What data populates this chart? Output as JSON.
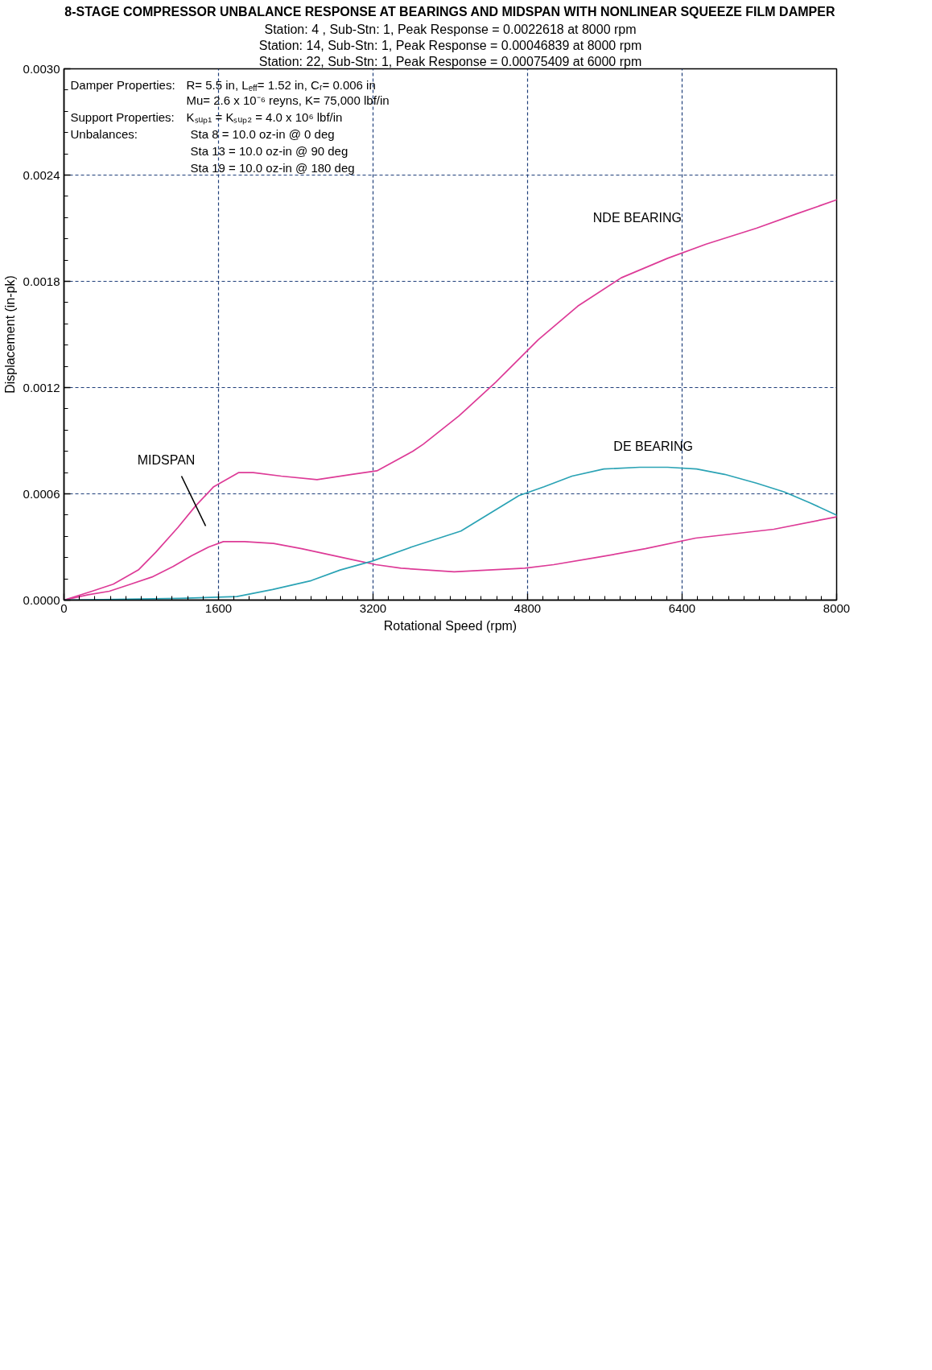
{
  "chart_data": {
    "type": "line",
    "title": "8-STAGE COMPRESSOR UNBALANCE RESPONSE AT BEARINGS AND MIDSPAN WITH NONLINEAR SQUEEZE FILM DAMPER",
    "xlabel": "Rotational Speed (rpm)",
    "ylabel": "Displacement (in-pk)",
    "annotations": [
      "Station: 4 , Sub-Stn: 1, Peak Response = 0.0022618 at 8000 rpm",
      "Station: 14, Sub-Stn: 1, Peak Response = 0.00046839 at 8000 rpm",
      "Station: 22, Sub-Stn: 1, Peak Response = 0.00075409 at 6000 rpm",
      "Damper Properties:",
      "R= 5.5 in, L$_{eff}$= 1.52 in, Cᵣ= 0.006 in",
      "Mu= 2.6 x 10⁻⁶ reyns, K= 75,000 lbf/in",
      "Support Properties:",
      "Kₛᵤₚ₁ = Kₛᵤₚ₂ = 4.0 x 10⁶ lbf/in",
      "Unbalances:",
      "Sta 8 = 10.0 oz-in @ 0 deg",
      "Sta 13 = 10.0 oz-in @ 90 deg",
      "Sta 19 = 10.0 oz-in @ 180 deg"
    ],
    "xlim": [
      0,
      8000
    ],
    "xticks": [
      0,
      1600,
      3200,
      4800,
      6400,
      8000
    ],
    "ylim": [
      0,
      0.003
    ],
    "yticks": [
      {
        "value": 0,
        "label": "0.0000"
      },
      0.0006,
      0.0012,
      0.0018,
      0.0024,
      {
        "value": 0.003,
        "label": "0.0030"
      }
    ],
    "grid": true,
    "line_style": "solid",
    "series": [
      {
        "name": "NDE BEARING",
        "color": "#dd3b97",
        "x": [
          0,
          290,
          510,
          770,
          950,
          1180,
          1360,
          1550,
          1810,
          1960,
          2250,
          2620,
          2980,
          3240,
          3610,
          3720,
          4090,
          4470,
          4910,
          5320,
          5770,
          6250,
          6650,
          7170,
          7580,
          8000
        ],
        "values": [
          0,
          5e-05,
          9e-05,
          0.00017,
          0.00027,
          0.00041,
          0.00053,
          0.00064,
          0.00072,
          0.00072,
          0.0007,
          0.00068,
          0.00071,
          0.00073,
          0.00084,
          0.00088,
          0.00104,
          0.00123,
          0.00147,
          0.00166,
          0.00182,
          0.00193,
          0.00201,
          0.0021,
          0.00218,
          0.00226
        ]
      },
      {
        "name": "MIDSPAN",
        "color": "#dd3b97",
        "x": [
          0,
          250,
          470,
          690,
          910,
          1130,
          1320,
          1500,
          1650,
          1870,
          2170,
          2460,
          2720,
          2970,
          3230,
          3490,
          4040,
          4400,
          4770,
          5070,
          5510,
          6020,
          6540,
          7350,
          8000
        ],
        "values": [
          0,
          3e-05,
          5e-05,
          9e-05,
          0.00013,
          0.00019,
          0.00025,
          0.0003,
          0.00033,
          0.00033,
          0.00032,
          0.00029,
          0.00026,
          0.00023,
          0.0002,
          0.00018,
          0.00016,
          0.00017,
          0.00018,
          0.0002,
          0.00024,
          0.00029,
          0.00035,
          0.0004,
          0.00047
        ]
      },
      {
        "name": "DE BEARING",
        "color": "#2ba3b5",
        "x": [
          0,
          1200,
          1790,
          2160,
          2560,
          2860,
          3190,
          3600,
          4110,
          4410,
          4710,
          4970,
          5260,
          5590,
          5960,
          6250,
          6550,
          6840,
          7170,
          7460,
          7720,
          8000
        ],
        "values": [
          0,
          1e-05,
          2e-05,
          6e-05,
          0.00011,
          0.00017,
          0.00022,
          0.0003,
          0.00039,
          0.00049,
          0.00059,
          0.00064,
          0.0007,
          0.00074,
          0.00075,
          0.00075,
          0.00074,
          0.00071,
          0.00066,
          0.00061,
          0.00055,
          0.00048
        ]
      }
    ]
  }
}
